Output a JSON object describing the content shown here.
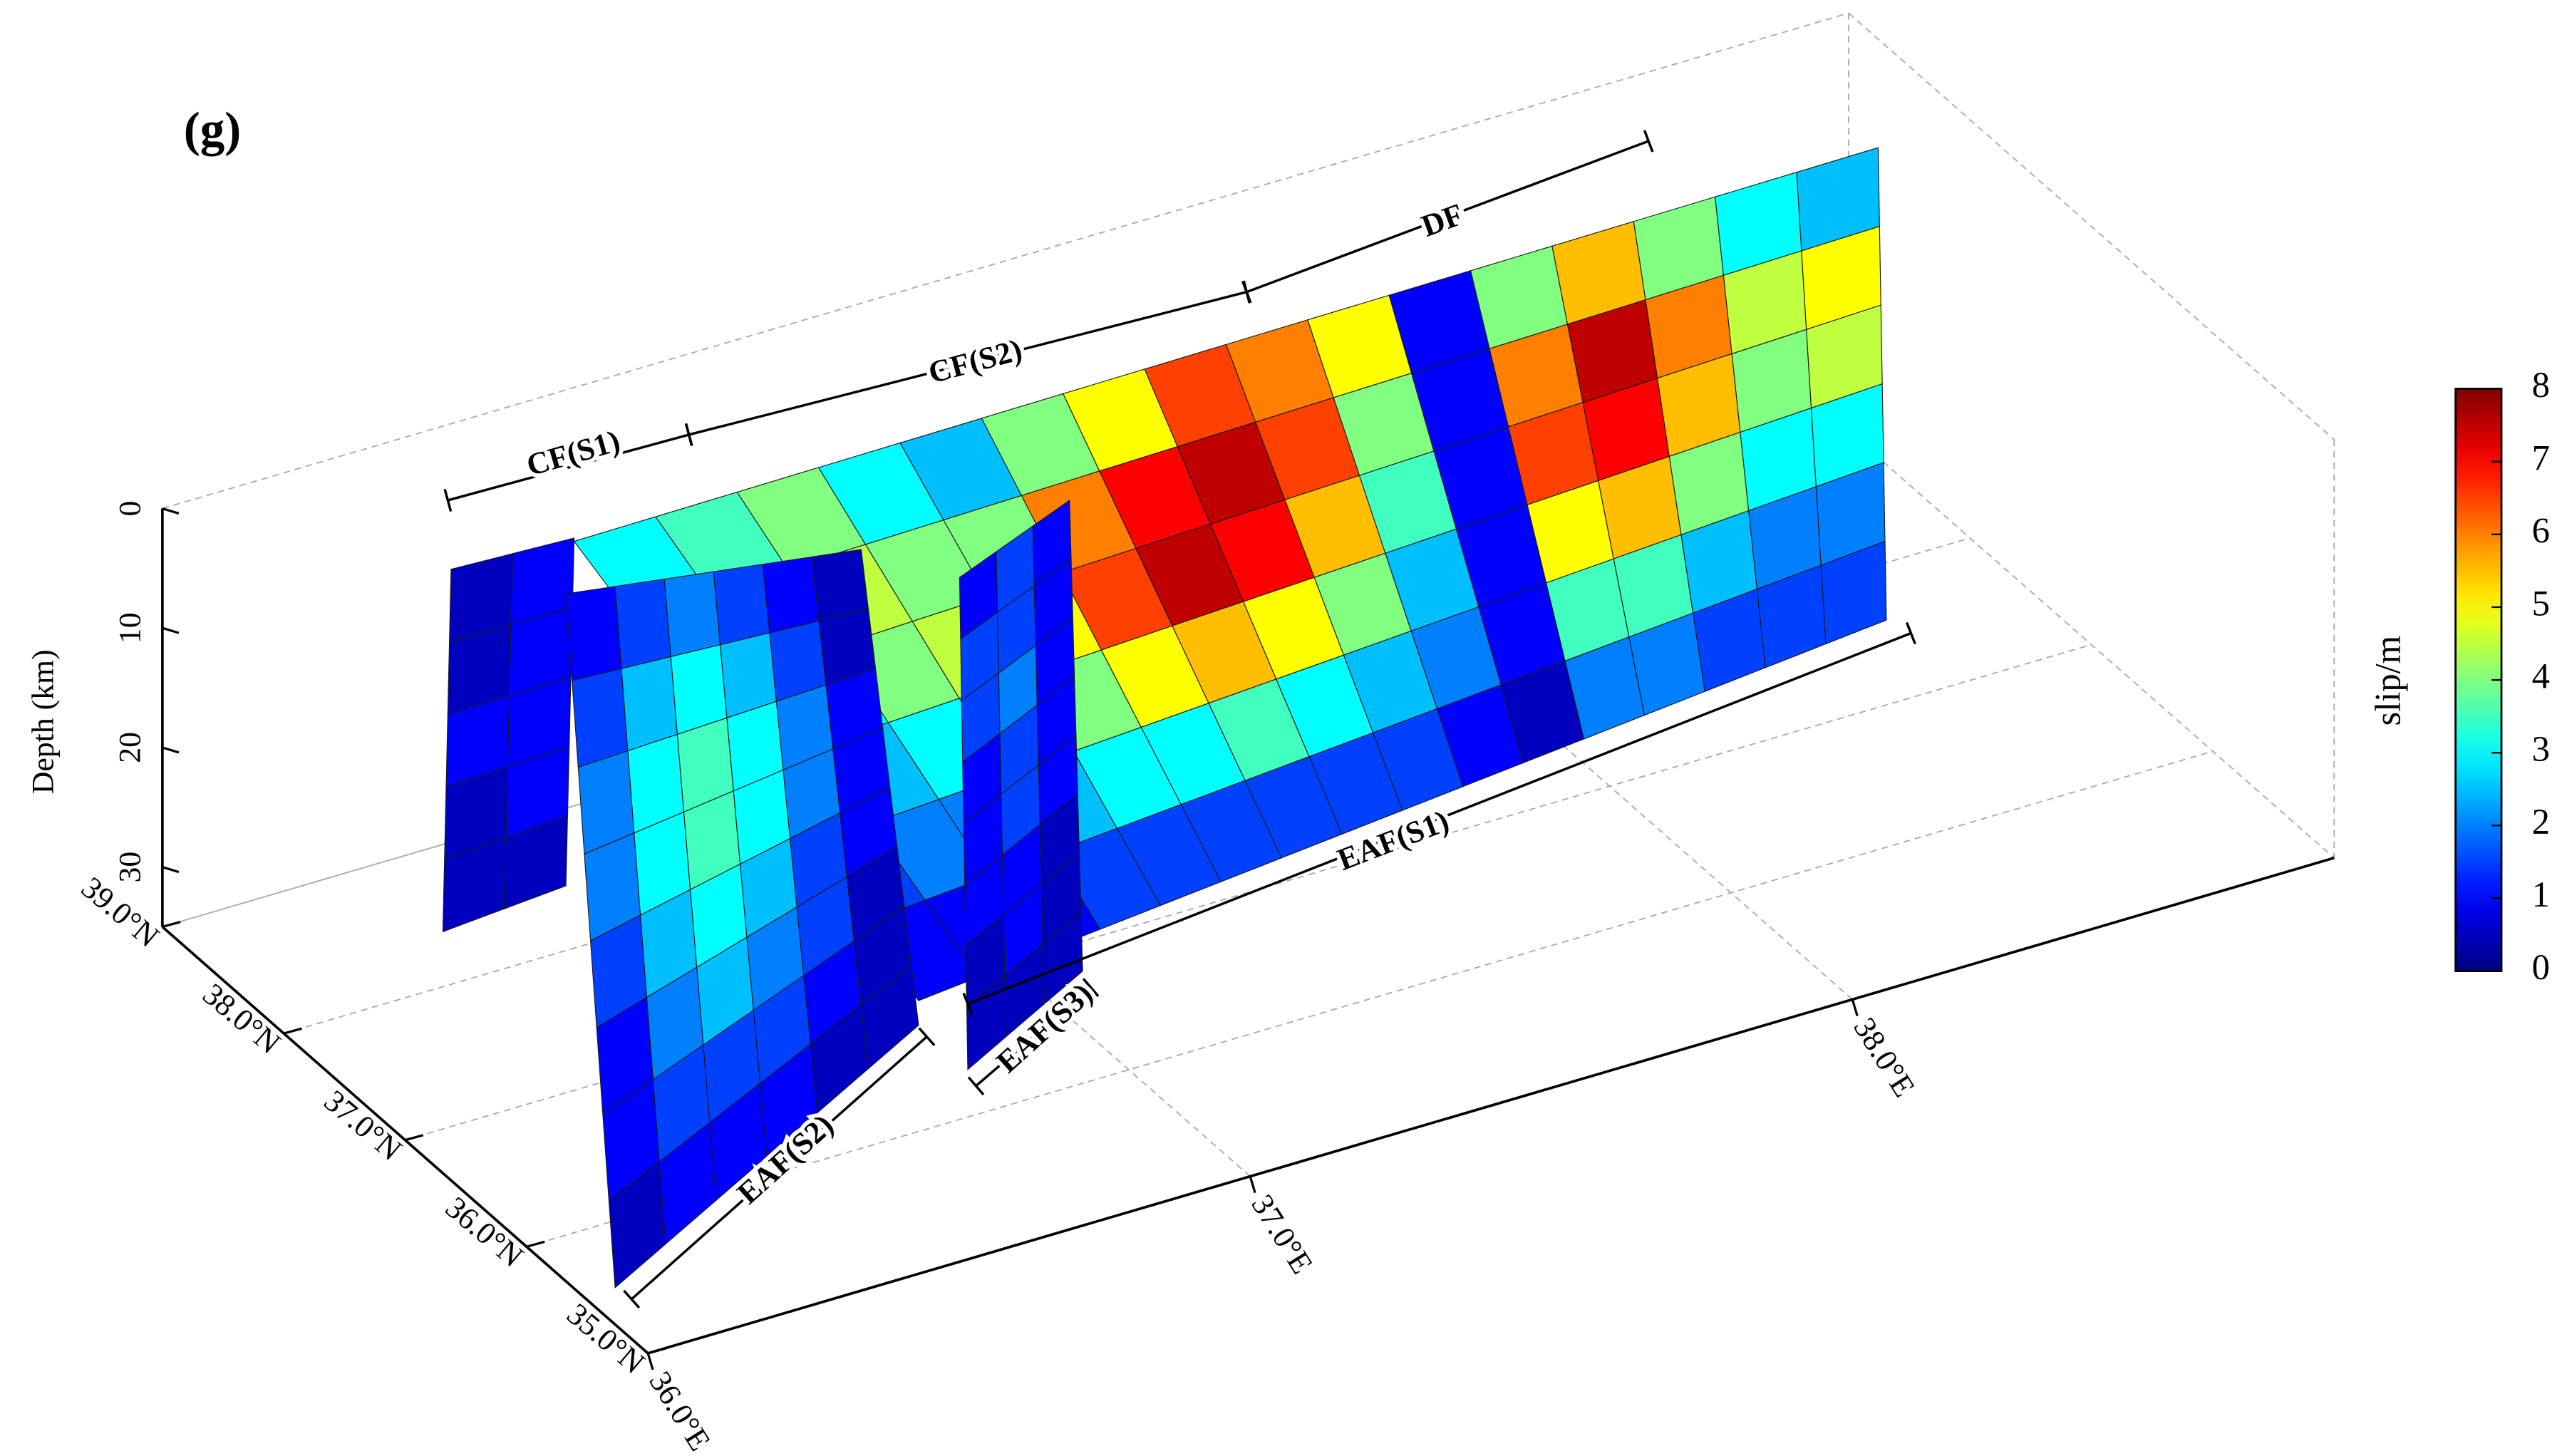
{
  "chart_data": {
    "type": "fault-slip-3d",
    "panel_label": "(g)",
    "zlabel": "Depth (km)",
    "zlim": [
      0,
      35
    ],
    "zticks": [
      0,
      10,
      20,
      30
    ],
    "xlim": [
      36.0,
      38.8
    ],
    "xticks": [
      {
        "value": 36.0,
        "label": "36.0°E"
      },
      {
        "value": 37.0,
        "label": "37.0°E"
      },
      {
        "value": 38.0,
        "label": "38.0°E"
      }
    ],
    "ylim": [
      35.0,
      39.0
    ],
    "yticks": [
      {
        "value": 39.0,
        "label": "39.0°N"
      },
      {
        "value": 38.0,
        "label": "38.0°N"
      },
      {
        "value": 37.0,
        "label": "37.0°N"
      },
      {
        "value": 36.0,
        "label": "36.0°N"
      },
      {
        "value": 35.0,
        "label": "35.0°N"
      }
    ],
    "colormap": "jet",
    "colorbar_label": "slip/m",
    "clim": [
      0,
      8
    ],
    "cticks": [
      0,
      1,
      2,
      3,
      4,
      5,
      6,
      7,
      8
    ],
    "annotations": [
      "CF(S1)",
      "CF(S2)",
      "DF",
      "EAF(S1)",
      "EAF(S2)",
      "EAF(S3)"
    ],
    "faults": [
      {
        "slip": [
          [
            3,
            3.5,
            4,
            3,
            2.5,
            4,
            5,
            6.5,
            6,
            5,
            1,
            4,
            5.5,
            4,
            3,
            2.5
          ],
          [
            3,
            3.5,
            4.5,
            4,
            4,
            6,
            7,
            7.5,
            6.5,
            4,
            1,
            6,
            7.5,
            6,
            4.5,
            5
          ],
          [
            2.5,
            3,
            4,
            4.5,
            5,
            6.5,
            7.5,
            7,
            5.5,
            3.5,
            1,
            6.5,
            7,
            5.5,
            4,
            4.5
          ],
          [
            2,
            2.5,
            3,
            3.5,
            4,
            5,
            5.5,
            5,
            4,
            2.5,
            1,
            5,
            5.5,
            4,
            3,
            3
          ],
          [
            1.5,
            2,
            2,
            2.5,
            3,
            3,
            3.5,
            3,
            2.5,
            2,
            1,
            3.5,
            3.5,
            2.5,
            2,
            2
          ],
          [
            1,
            1,
            1,
            1.5,
            1.5,
            1.5,
            1.5,
            1.5,
            1.5,
            1,
            0.5,
            2,
            2,
            1.5,
            1.5,
            1.5
          ]
        ]
      },
      {
        "slip": [
          [
            0.5,
            1
          ],
          [
            0.5,
            1
          ],
          [
            1,
            1
          ],
          [
            0.5,
            1
          ],
          [
            0.5,
            0.5
          ]
        ]
      },
      {
        "slip": [
          [
            1,
            1.5,
            1
          ],
          [
            1.5,
            1.5,
            1
          ],
          [
            1.5,
            2,
            1
          ],
          [
            1,
            1.5,
            1
          ],
          [
            1,
            1.5,
            1
          ],
          [
            1,
            1,
            0.5
          ],
          [
            0.5,
            1,
            0.5
          ],
          [
            0.5,
            0.5,
            0.5
          ]
        ]
      },
      {
        "slip": [
          [
            1,
            1.5,
            2,
            1.5,
            1,
            0.5
          ],
          [
            1.5,
            2.5,
            3,
            2.5,
            1.5,
            0.5
          ],
          [
            2,
            3,
            3.5,
            3,
            2,
            1
          ],
          [
            2,
            3,
            3.5,
            3,
            2,
            1
          ],
          [
            1.5,
            2.5,
            3,
            2.5,
            1.5,
            1
          ],
          [
            1,
            2,
            2.5,
            2,
            1.5,
            0.5
          ],
          [
            1,
            1.5,
            1.5,
            1.5,
            1,
            0.5
          ],
          [
            0.5,
            1,
            1,
            1,
            0.5,
            0.5
          ]
        ]
      }
    ]
  }
}
